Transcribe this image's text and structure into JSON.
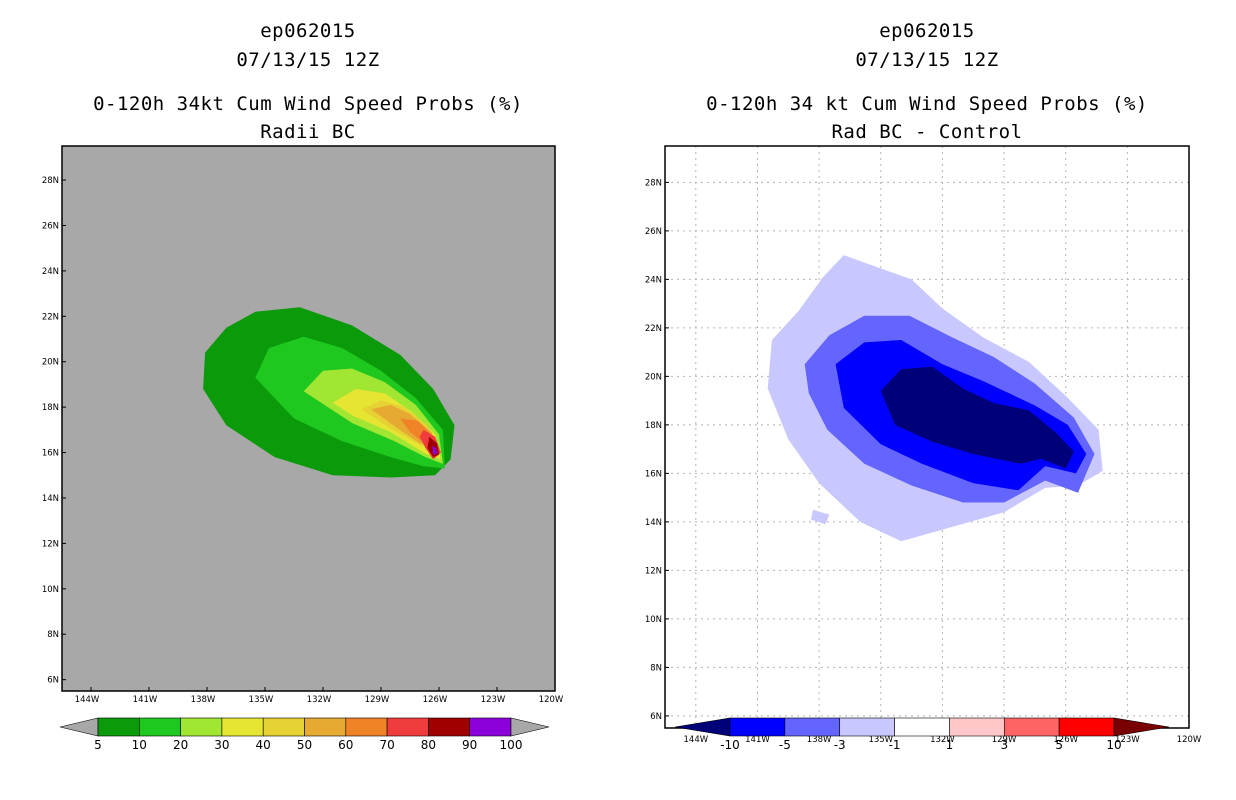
{
  "chart_data": [
    {
      "type": "heatmap",
      "title_lines": [
        "ep062015",
        "07/13/15 12Z",
        "0-120h 34kt Cum Wind Speed Probs (%)",
        "Radii BC"
      ],
      "xlabel": "",
      "ylabel": "",
      "x_ticks": [
        "144W",
        "141W",
        "138W",
        "135W",
        "132W",
        "129W",
        "126W",
        "123W",
        "120W"
      ],
      "y_ticks": [
        "6N",
        "8N",
        "10N",
        "12N",
        "14N",
        "16N",
        "18N",
        "20N",
        "22N",
        "24N",
        "26N",
        "28N"
      ],
      "x_range": [
        -145.5,
        -120
      ],
      "y_range": [
        5.5,
        29.5
      ],
      "background": "#a8a8a8",
      "grid": false,
      "levels": [
        5,
        10,
        20,
        30,
        40,
        50,
        60,
        70,
        80,
        90,
        100
      ],
      "level_colors": [
        "#0a9a0a",
        "#1ec81e",
        "#a0e632",
        "#e6e632",
        "#e6d232",
        "#e6aa32",
        "#f08228",
        "#f03c3c",
        "#a00000",
        "#8c00dc"
      ],
      "colorbar_labels": [
        "5",
        "10",
        "20",
        "30",
        "40",
        "50",
        "60",
        "70",
        "80",
        "90",
        "100"
      ],
      "features": [
        {
          "level": 5,
          "polygon": [
            [
              -138.1,
              20.4
            ],
            [
              -137.0,
              21.5
            ],
            [
              -135.5,
              22.2
            ],
            [
              -133.2,
              22.4
            ],
            [
              -130.5,
              21.6
            ],
            [
              -128.0,
              20.3
            ],
            [
              -126.3,
              18.8
            ],
            [
              -125.2,
              17.2
            ],
            [
              -125.4,
              15.7
            ],
            [
              -126.2,
              15.0
            ],
            [
              -128.5,
              14.9
            ],
            [
              -131.5,
              15.0
            ],
            [
              -134.5,
              15.8
            ],
            [
              -137.0,
              17.2
            ],
            [
              -138.2,
              18.8
            ]
          ]
        },
        {
          "level": 10,
          "polygon": [
            [
              -135.5,
              19.3
            ],
            [
              -134.8,
              20.6
            ],
            [
              -133.0,
              21.1
            ],
            [
              -131.0,
              20.6
            ],
            [
              -129.0,
              19.6
            ],
            [
              -127.2,
              18.4
            ],
            [
              -125.8,
              17.0
            ],
            [
              -125.7,
              15.3
            ],
            [
              -126.8,
              15.4
            ],
            [
              -128.5,
              15.8
            ],
            [
              -131.0,
              16.5
            ],
            [
              -133.5,
              17.5
            ]
          ]
        },
        {
          "level": 20,
          "polygon": [
            [
              -133.0,
              18.7
            ],
            [
              -132.0,
              19.6
            ],
            [
              -130.5,
              19.7
            ],
            [
              -128.8,
              19.1
            ],
            [
              -127.2,
              18.1
            ],
            [
              -126.0,
              16.8
            ],
            [
              -125.8,
              15.5
            ],
            [
              -126.7,
              15.8
            ],
            [
              -128.3,
              16.5
            ],
            [
              -130.5,
              17.3
            ]
          ]
        },
        {
          "level": 30,
          "polygon": [
            [
              -131.5,
              18.2
            ],
            [
              -130.3,
              18.8
            ],
            [
              -128.8,
              18.6
            ],
            [
              -127.4,
              17.8
            ],
            [
              -126.2,
              16.8
            ],
            [
              -125.9,
              15.7
            ],
            [
              -126.8,
              16.0
            ],
            [
              -128.5,
              16.9
            ],
            [
              -130.4,
              17.6
            ]
          ]
        },
        {
          "level": 40,
          "polygon": [
            [
              -130.0,
              17.9
            ],
            [
              -129.0,
              18.3
            ],
            [
              -127.8,
              18.0
            ],
            [
              -126.6,
              17.2
            ],
            [
              -126.0,
              16.1
            ],
            [
              -126.9,
              16.3
            ],
            [
              -128.4,
              17.0
            ]
          ]
        },
        {
          "level": 50,
          "polygon": [
            [
              -129.5,
              17.9
            ],
            [
              -128.5,
              18.1
            ],
            [
              -127.5,
              17.7
            ],
            [
              -126.4,
              16.9
            ],
            [
              -126.0,
              16.2
            ],
            [
              -127.0,
              16.4
            ],
            [
              -128.2,
              17.1
            ]
          ]
        },
        {
          "level": 60,
          "polygon": [
            [
              -128.0,
              17.5
            ],
            [
              -127.1,
              17.4
            ],
            [
              -126.4,
              16.8
            ],
            [
              -126.0,
              16.0
            ],
            [
              -126.6,
              16.3
            ],
            [
              -127.5,
              16.9
            ]
          ]
        },
        {
          "level": 70,
          "polygon": [
            [
              -126.8,
              17.0
            ],
            [
              -126.2,
              16.7
            ],
            [
              -125.9,
              16.0
            ],
            [
              -126.3,
              15.7
            ],
            [
              -126.7,
              16.2
            ],
            [
              -127.0,
              16.7
            ]
          ]
        },
        {
          "level": 80,
          "polygon": [
            [
              -126.5,
              16.7
            ],
            [
              -126.1,
              16.4
            ],
            [
              -126.0,
              15.9
            ],
            [
              -126.3,
              15.8
            ],
            [
              -126.6,
              16.2
            ]
          ]
        },
        {
          "level": 90,
          "polygon": [
            [
              -126.35,
              16.3
            ],
            [
              -126.15,
              16.2
            ],
            [
              -126.1,
              15.95
            ],
            [
              -126.3,
              15.9
            ]
          ]
        }
      ]
    },
    {
      "type": "heatmap",
      "title_lines": [
        "ep062015",
        "07/13/15 12Z",
        "0-120h 34 kt Cum Wind Speed Probs (%)",
        "Rad BC - Control"
      ],
      "xlabel": "",
      "ylabel": "",
      "x_ticks": [
        "144W",
        "141W",
        "138W",
        "135W",
        "132W",
        "129W",
        "126W",
        "123W",
        "120W"
      ],
      "y_ticks": [
        "6N",
        "8N",
        "10N",
        "12N",
        "14N",
        "16N",
        "18N",
        "20N",
        "22N",
        "24N",
        "26N",
        "28N"
      ],
      "x_range": [
        -145.5,
        -120
      ],
      "y_range": [
        5.5,
        29.5
      ],
      "background": "#ffffff",
      "grid": true,
      "levels": [
        -10,
        -5,
        -3,
        -1,
        1,
        3,
        5,
        10
      ],
      "level_colors": [
        "#000078",
        "#0000ff",
        "#6464ff",
        "#c8c8ff",
        "#ffffff",
        "#ffc8c8",
        "#ff6464",
        "#ff0000",
        "#780000"
      ],
      "colorbar_labels": [
        "-10",
        "-5",
        "-3",
        "-1",
        "1",
        "3",
        "5",
        "10"
      ],
      "features": [
        {
          "level": -1,
          "polygon": [
            [
              -140.3,
              21.5
            ],
            [
              -139.0,
              22.7
            ],
            [
              -137.8,
              24.1
            ],
            [
              -136.8,
              25.0
            ],
            [
              -135.5,
              24.6
            ],
            [
              -133.5,
              24.0
            ],
            [
              -132.0,
              22.8
            ],
            [
              -130.0,
              21.6
            ],
            [
              -127.8,
              20.6
            ],
            [
              -126.0,
              19.2
            ],
            [
              -124.4,
              17.8
            ],
            [
              -124.2,
              16.1
            ],
            [
              -125.4,
              15.5
            ],
            [
              -127.0,
              15.4
            ],
            [
              -129.0,
              14.4
            ],
            [
              -131.5,
              13.8
            ],
            [
              -134.0,
              13.2
            ],
            [
              -136.0,
              14.0
            ],
            [
              -138.0,
              15.6
            ],
            [
              -139.5,
              17.4
            ],
            [
              -140.5,
              19.5
            ]
          ]
        },
        {
          "level": -1,
          "polygon": [
            [
              -138.3,
              14.5
            ],
            [
              -137.5,
              14.3
            ],
            [
              -137.7,
              13.9
            ],
            [
              -138.4,
              14.1
            ]
          ]
        },
        {
          "level": -3,
          "polygon": [
            [
              -138.7,
              20.5
            ],
            [
              -137.5,
              21.7
            ],
            [
              -135.8,
              22.5
            ],
            [
              -133.6,
              22.5
            ],
            [
              -131.5,
              21.6
            ],
            [
              -129.5,
              20.8
            ],
            [
              -127.5,
              19.7
            ],
            [
              -125.6,
              18.3
            ],
            [
              -124.6,
              16.8
            ],
            [
              -125.4,
              15.2
            ],
            [
              -127.0,
              15.7
            ],
            [
              -129.0,
              14.8
            ],
            [
              -131.0,
              14.8
            ],
            [
              -133.5,
              15.5
            ],
            [
              -135.8,
              16.4
            ],
            [
              -137.6,
              17.8
            ],
            [
              -138.5,
              19.3
            ]
          ]
        },
        {
          "level": -5,
          "polygon": [
            [
              -137.2,
              20.5
            ],
            [
              -135.8,
              21.4
            ],
            [
              -134.0,
              21.5
            ],
            [
              -132.0,
              20.5
            ],
            [
              -130.0,
              19.8
            ],
            [
              -127.5,
              18.8
            ],
            [
              -125.9,
              18.0
            ],
            [
              -125.0,
              16.8
            ],
            [
              -125.5,
              16.0
            ],
            [
              -127.0,
              16.3
            ],
            [
              -128.3,
              15.3
            ],
            [
              -130.5,
              15.6
            ],
            [
              -133.0,
              16.4
            ],
            [
              -135.0,
              17.2
            ],
            [
              -136.8,
              18.7
            ]
          ]
        },
        {
          "level": -10,
          "polygon": [
            [
              -135.0,
              19.4
            ],
            [
              -134.0,
              20.3
            ],
            [
              -132.5,
              20.4
            ],
            [
              -131.0,
              19.5
            ],
            [
              -129.5,
              18.9
            ],
            [
              -127.8,
              18.6
            ],
            [
              -126.5,
              17.7
            ],
            [
              -125.6,
              16.9
            ],
            [
              -126.0,
              16.2
            ],
            [
              -127.2,
              16.6
            ],
            [
              -128.2,
              16.4
            ],
            [
              -130.5,
              16.8
            ],
            [
              -132.5,
              17.3
            ],
            [
              -134.3,
              18.0
            ]
          ]
        }
      ]
    }
  ]
}
